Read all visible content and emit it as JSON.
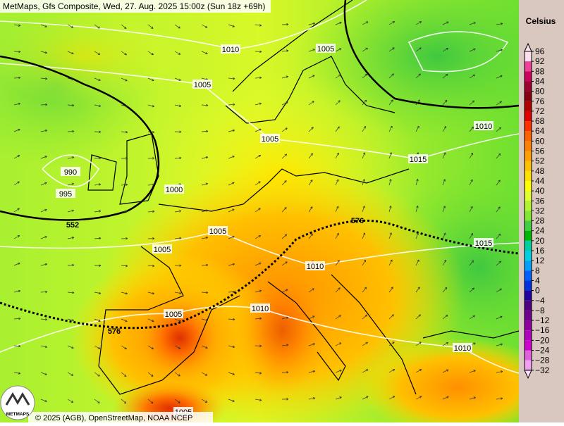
{
  "header": {
    "title": "MetMaps, Gfs Composite, Wed, 27. Aug. 2025 15:00z (Sun 18z +69h)"
  },
  "colorbar": {
    "unit": "Celsius",
    "bins": [
      {
        "label": "96",
        "color": "#fde0ef"
      },
      {
        "label": "92",
        "color": "#f0409a"
      },
      {
        "label": "88",
        "color": "#d0005f"
      },
      {
        "label": "84",
        "color": "#a00030"
      },
      {
        "label": "80",
        "color": "#880010"
      },
      {
        "label": "76",
        "color": "#b00000"
      },
      {
        "label": "72",
        "color": "#e00000"
      },
      {
        "label": "68",
        "color": "#ff3000"
      },
      {
        "label": "64",
        "color": "#ff6000"
      },
      {
        "label": "60",
        "color": "#ff8000"
      },
      {
        "label": "56",
        "color": "#ffa000"
      },
      {
        "label": "52",
        "color": "#ffc000"
      },
      {
        "label": "48",
        "color": "#ffe000"
      },
      {
        "label": "44",
        "color": "#ffff00"
      },
      {
        "label": "40",
        "color": "#e0ff30"
      },
      {
        "label": "36",
        "color": "#b0f530"
      },
      {
        "label": "32",
        "color": "#80e830"
      },
      {
        "label": "28",
        "color": "#40d040"
      },
      {
        "label": "24",
        "color": "#00b800"
      },
      {
        "label": "20",
        "color": "#00d0a0"
      },
      {
        "label": "16",
        "color": "#00d0e0"
      },
      {
        "label": "12",
        "color": "#00a0ff"
      },
      {
        "label": "8",
        "color": "#0060ff"
      },
      {
        "label": "4",
        "color": "#0030e0"
      },
      {
        "label": "0",
        "color": "#2000a0"
      },
      {
        "label": "−4",
        "color": "#500080"
      },
      {
        "label": "−8",
        "color": "#700090"
      },
      {
        "label": "−12",
        "color": "#9000a0"
      },
      {
        "label": "−16",
        "color": "#b000c0"
      },
      {
        "label": "−20",
        "color": "#d000d0"
      },
      {
        "label": "−24",
        "color": "#e060e0"
      },
      {
        "label": "−28",
        "color": "#f0a0f0"
      },
      {
        "label": "−32",
        "color": "#fce0fc"
      }
    ]
  },
  "map": {
    "isobar_labels": [
      "1010",
      "1005",
      "1005",
      "1010",
      "1005",
      "1015",
      "990",
      "995",
      "1000",
      "552",
      "576",
      "1005",
      "1015",
      "1005",
      "1010",
      "1010",
      "1005",
      "576",
      "1010",
      "1005"
    ]
  },
  "footer": {
    "logo": "METMAPS",
    "copyright": "© 2025 (AGB), OpenStreetMap, NOAA NCEP"
  }
}
